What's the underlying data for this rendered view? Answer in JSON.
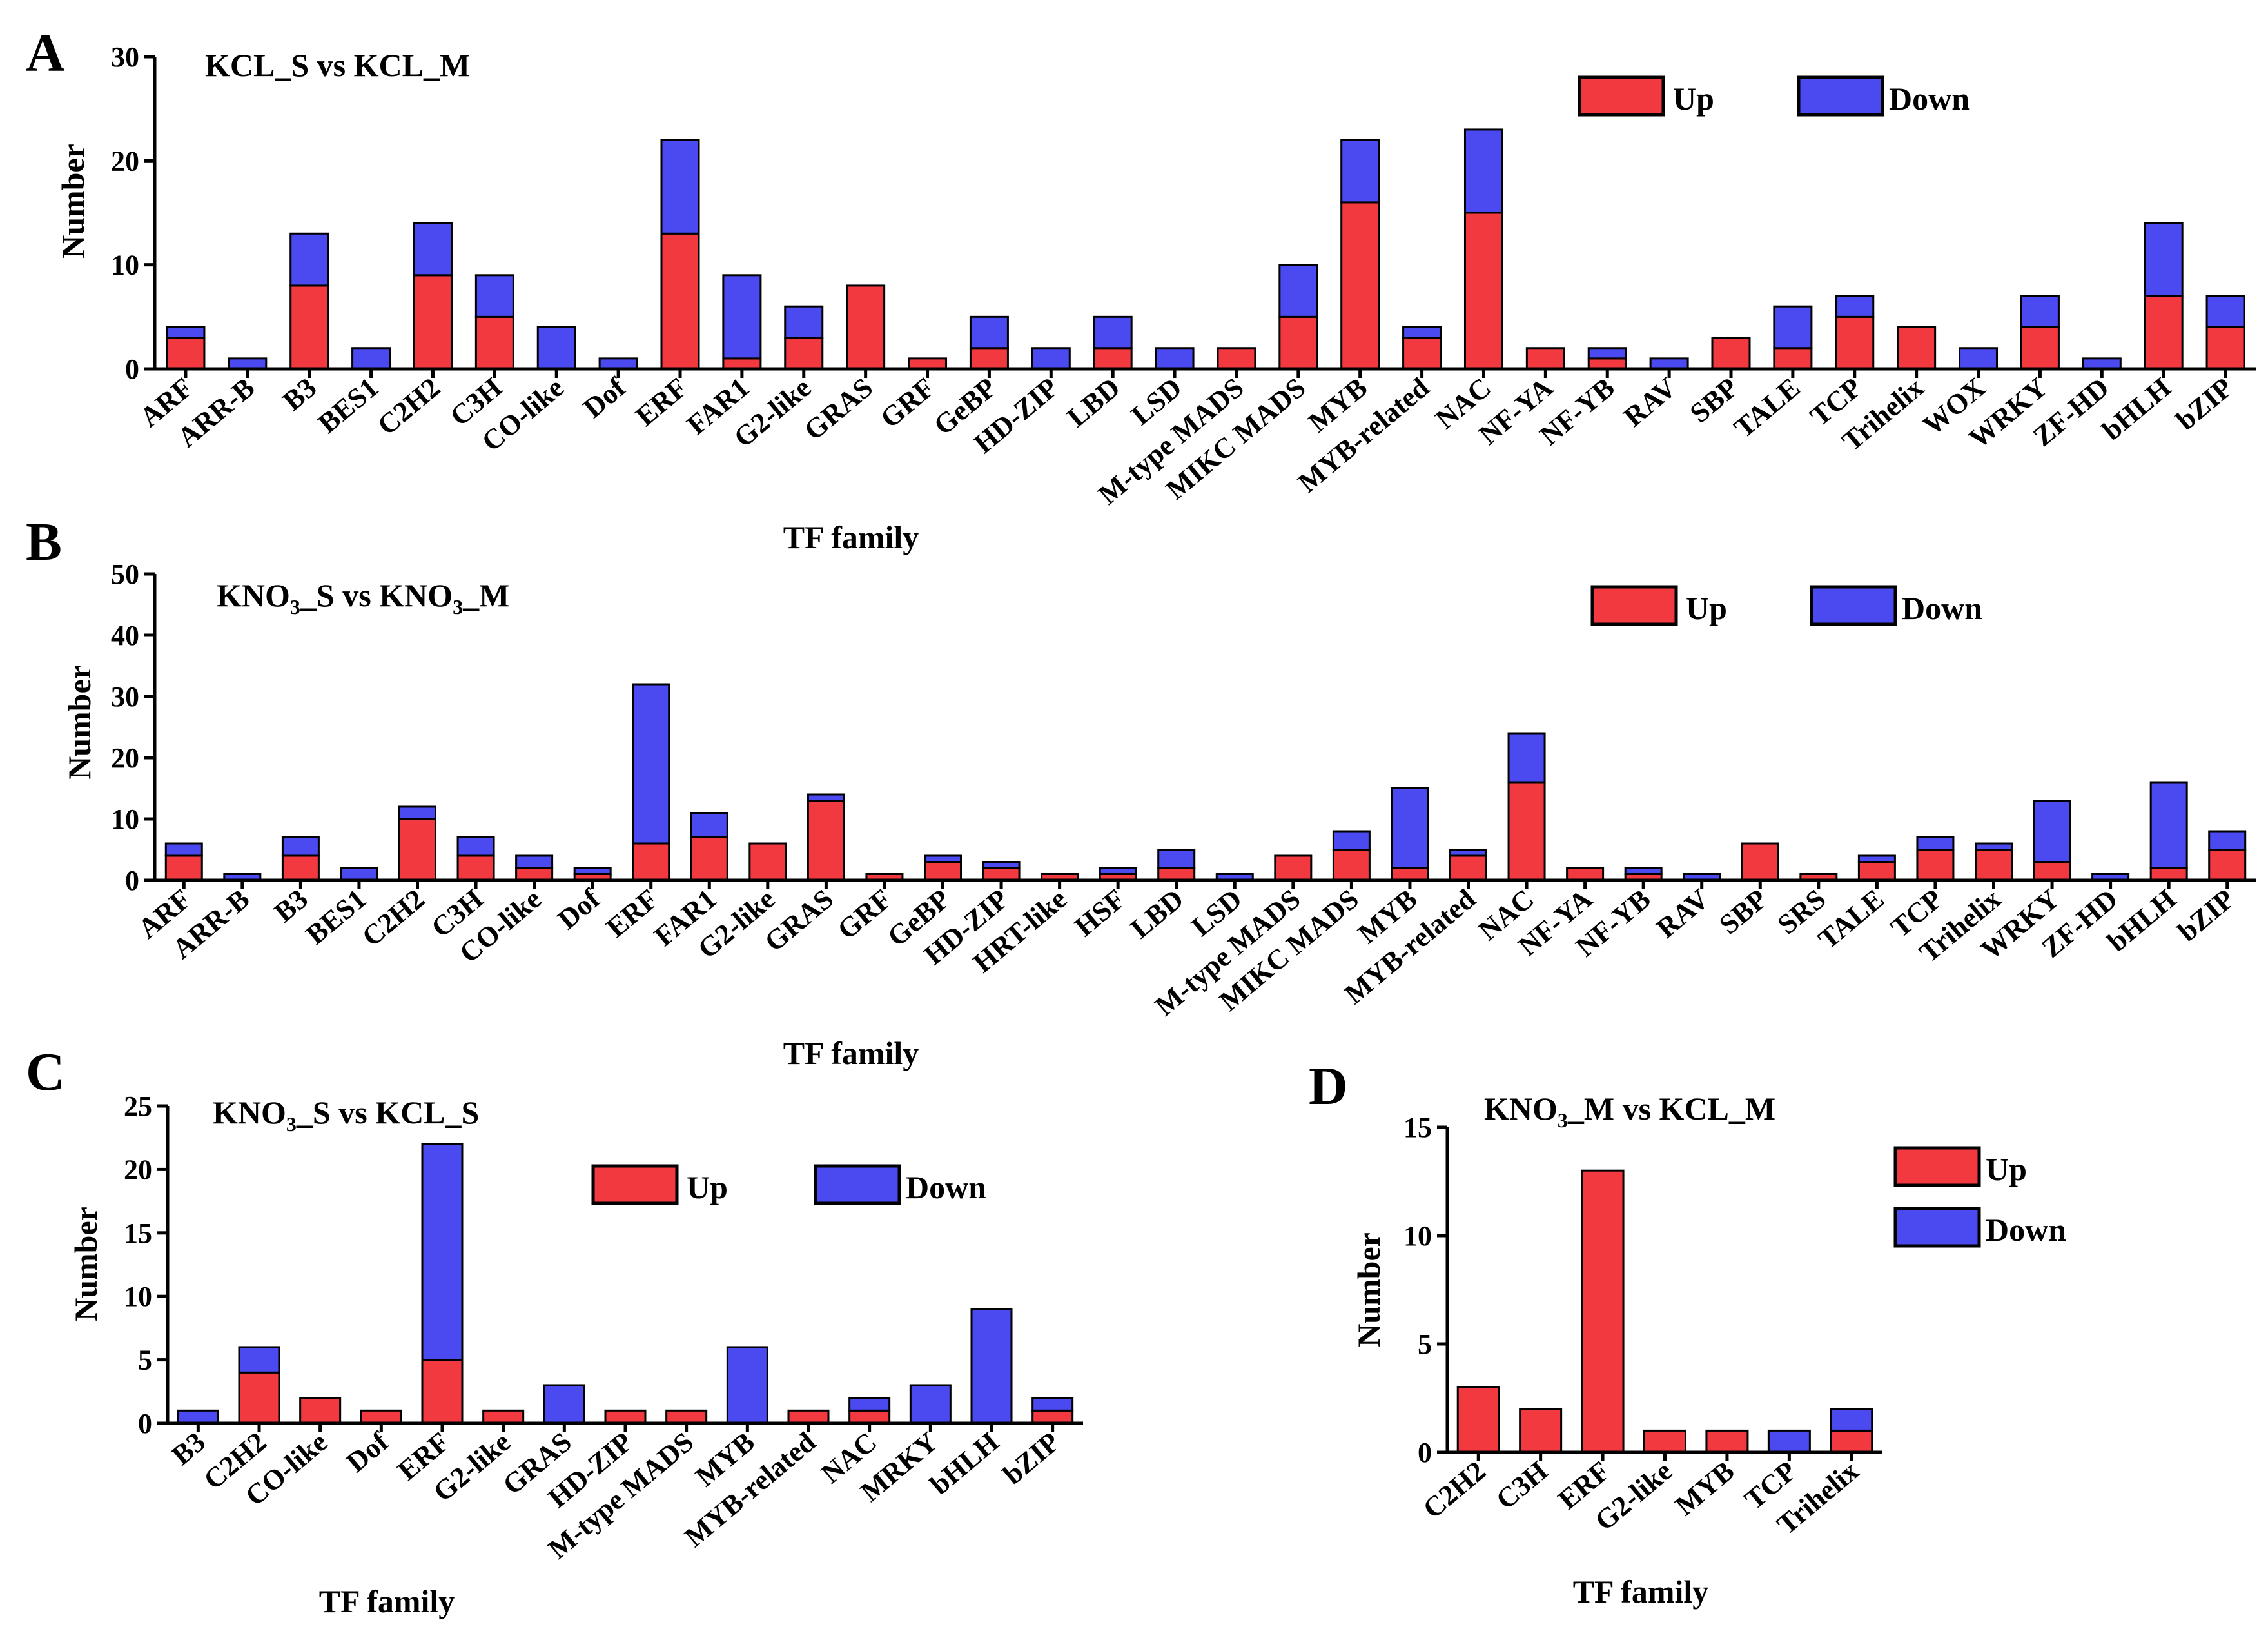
{
  "colors": {
    "up": "#f2393f",
    "down": "#4a4af0"
  },
  "panels": [
    {
      "letter": "A",
      "title": "KCL_S vs KCL_M",
      "legend": {
        "up": "Up",
        "down": "Down"
      }
    },
    {
      "letter": "B",
      "title_prefix": "KNO",
      "title_sub": "3",
      "title_mid": "_S vs KNO",
      "title_sub2": "3",
      "title_suffix": "_M",
      "legend": {
        "up": "Up",
        "down": "Down"
      }
    },
    {
      "letter": "C",
      "title_prefix": "KNO",
      "title_sub": "3",
      "title_suffix": "_S vs KCL_S",
      "legend": {
        "up": "Up",
        "down": "Down"
      }
    },
    {
      "letter": "D",
      "title_prefix": "KNO",
      "title_sub": "3",
      "title_suffix": "_M vs KCL_M",
      "legend": {
        "up": "Up",
        "down": "Down"
      }
    }
  ],
  "chart_data": [
    {
      "type": "bar",
      "stacked": true,
      "title": "KCL_S vs KCL_M",
      "xlabel": "TF family",
      "ylabel": "Number",
      "ylim": [
        0,
        30
      ],
      "yticks": [
        0,
        10,
        20,
        30
      ],
      "categories": [
        "ARF",
        "ARR-B",
        "B3",
        "BES1",
        "C2H2",
        "C3H",
        "CO-like",
        "Dof",
        "ERF",
        "FAR1",
        "G2-like",
        "GRAS",
        "GRF",
        "GeBP",
        "HD-ZIP",
        "LBD",
        "LSD",
        "M-type MADS",
        "MIKC MADS",
        "MYB",
        "MYB-related",
        "NAC",
        "NF-YA",
        "NF-YB",
        "RAV",
        "SBP",
        "TALE",
        "TCP",
        "Trihelix",
        "WOX",
        "WRKY",
        "ZF-HD",
        "bHLH",
        "bZIP"
      ],
      "series": [
        {
          "name": "Up",
          "values": [
            3,
            0,
            8,
            0,
            9,
            5,
            0,
            0,
            13,
            1,
            3,
            8,
            1,
            2,
            0,
            2,
            0,
            2,
            5,
            16,
            3,
            15,
            2,
            1,
            0,
            3,
            2,
            5,
            4,
            0,
            4,
            0,
            7,
            4
          ]
        },
        {
          "name": "Down",
          "values": [
            1,
            1,
            5,
            2,
            5,
            4,
            4,
            1,
            9,
            8,
            3,
            0,
            0,
            3,
            2,
            3,
            2,
            0,
            5,
            6,
            1,
            8,
            0,
            1,
            1,
            0,
            4,
            2,
            0,
            2,
            3,
            1,
            7,
            3
          ]
        }
      ],
      "legend": "top-right"
    },
    {
      "type": "bar",
      "stacked": true,
      "title": "KNO3_S vs KNO3_M",
      "xlabel": "TF family",
      "ylabel": "Number",
      "ylim": [
        0,
        50
      ],
      "yticks": [
        0,
        10,
        20,
        30,
        40,
        50
      ],
      "categories": [
        "ARF",
        "ARR-B",
        "B3",
        "BES1",
        "C2H2",
        "C3H",
        "CO-like",
        "Dof",
        "ERF",
        "FAR1",
        "G2-like",
        "GRAS",
        "GRF",
        "GeBP",
        "HD-ZIP",
        "HRT-like",
        "HSF",
        "LBD",
        "LSD",
        "M-type MADS",
        "MIKC MADS",
        "MYB",
        "MYB-related",
        "NAC",
        "NF-YA",
        "NF-YB",
        "RAV",
        "SBP",
        "SRS",
        "TALE",
        "TCP",
        "Trihelix",
        "WRKY",
        "ZF-HD",
        "bHLH",
        "bZIP"
      ],
      "series": [
        {
          "name": "Up",
          "values": [
            4,
            0,
            4,
            0,
            10,
            4,
            2,
            1,
            6,
            7,
            6,
            13,
            1,
            3,
            2,
            1,
            1,
            2,
            0,
            4,
            5,
            2,
            4,
            16,
            2,
            1,
            0,
            6,
            1,
            3,
            5,
            5,
            3,
            0,
            2,
            5
          ]
        },
        {
          "name": "Down",
          "values": [
            2,
            1,
            3,
            2,
            2,
            3,
            2,
            1,
            26,
            4,
            0,
            1,
            0,
            1,
            1,
            0,
            1,
            3,
            1,
            0,
            3,
            13,
            1,
            8,
            0,
            1,
            1,
            0,
            0,
            1,
            2,
            1,
            10,
            1,
            14,
            3
          ]
        }
      ],
      "legend": "top-right"
    },
    {
      "type": "bar",
      "stacked": true,
      "title": "KNO3_S vs KCL_S",
      "xlabel": "TF family",
      "ylabel": "Number",
      "ylim": [
        0,
        25
      ],
      "yticks": [
        0,
        5,
        10,
        15,
        20,
        25
      ],
      "categories": [
        "B3",
        "C2H2",
        "CO-like",
        "Dof",
        "ERF",
        "G2-like",
        "GRAS",
        "HD-ZIP",
        "M-type MADS",
        "MYB",
        "MYB-related",
        "NAC",
        "MRKY",
        "bHLH",
        "bZIP"
      ],
      "series": [
        {
          "name": "Up",
          "values": [
            0,
            4,
            2,
            1,
            5,
            1,
            0,
            1,
            1,
            0,
            1,
            1,
            0,
            0,
            1
          ]
        },
        {
          "name": "Down",
          "values": [
            1,
            2,
            0,
            0,
            17,
            0,
            3,
            0,
            0,
            6,
            0,
            1,
            3,
            9,
            1
          ]
        }
      ],
      "legend": "top-right"
    },
    {
      "type": "bar",
      "stacked": true,
      "title": "KNO3_M vs KCL_M",
      "xlabel": "TF family",
      "ylabel": "Number",
      "ylim": [
        0,
        15
      ],
      "yticks": [
        0,
        5,
        10,
        15
      ],
      "categories": [
        "C2H2",
        "C3H",
        "ERF",
        "G2-like",
        "MYB",
        "TCP",
        "Trihelix"
      ],
      "series": [
        {
          "name": "Up",
          "values": [
            3,
            2,
            13,
            1,
            1,
            0,
            1
          ]
        },
        {
          "name": "Down",
          "values": [
            0,
            0,
            0,
            0,
            0,
            1,
            1
          ]
        }
      ],
      "legend": "top-right"
    }
  ]
}
